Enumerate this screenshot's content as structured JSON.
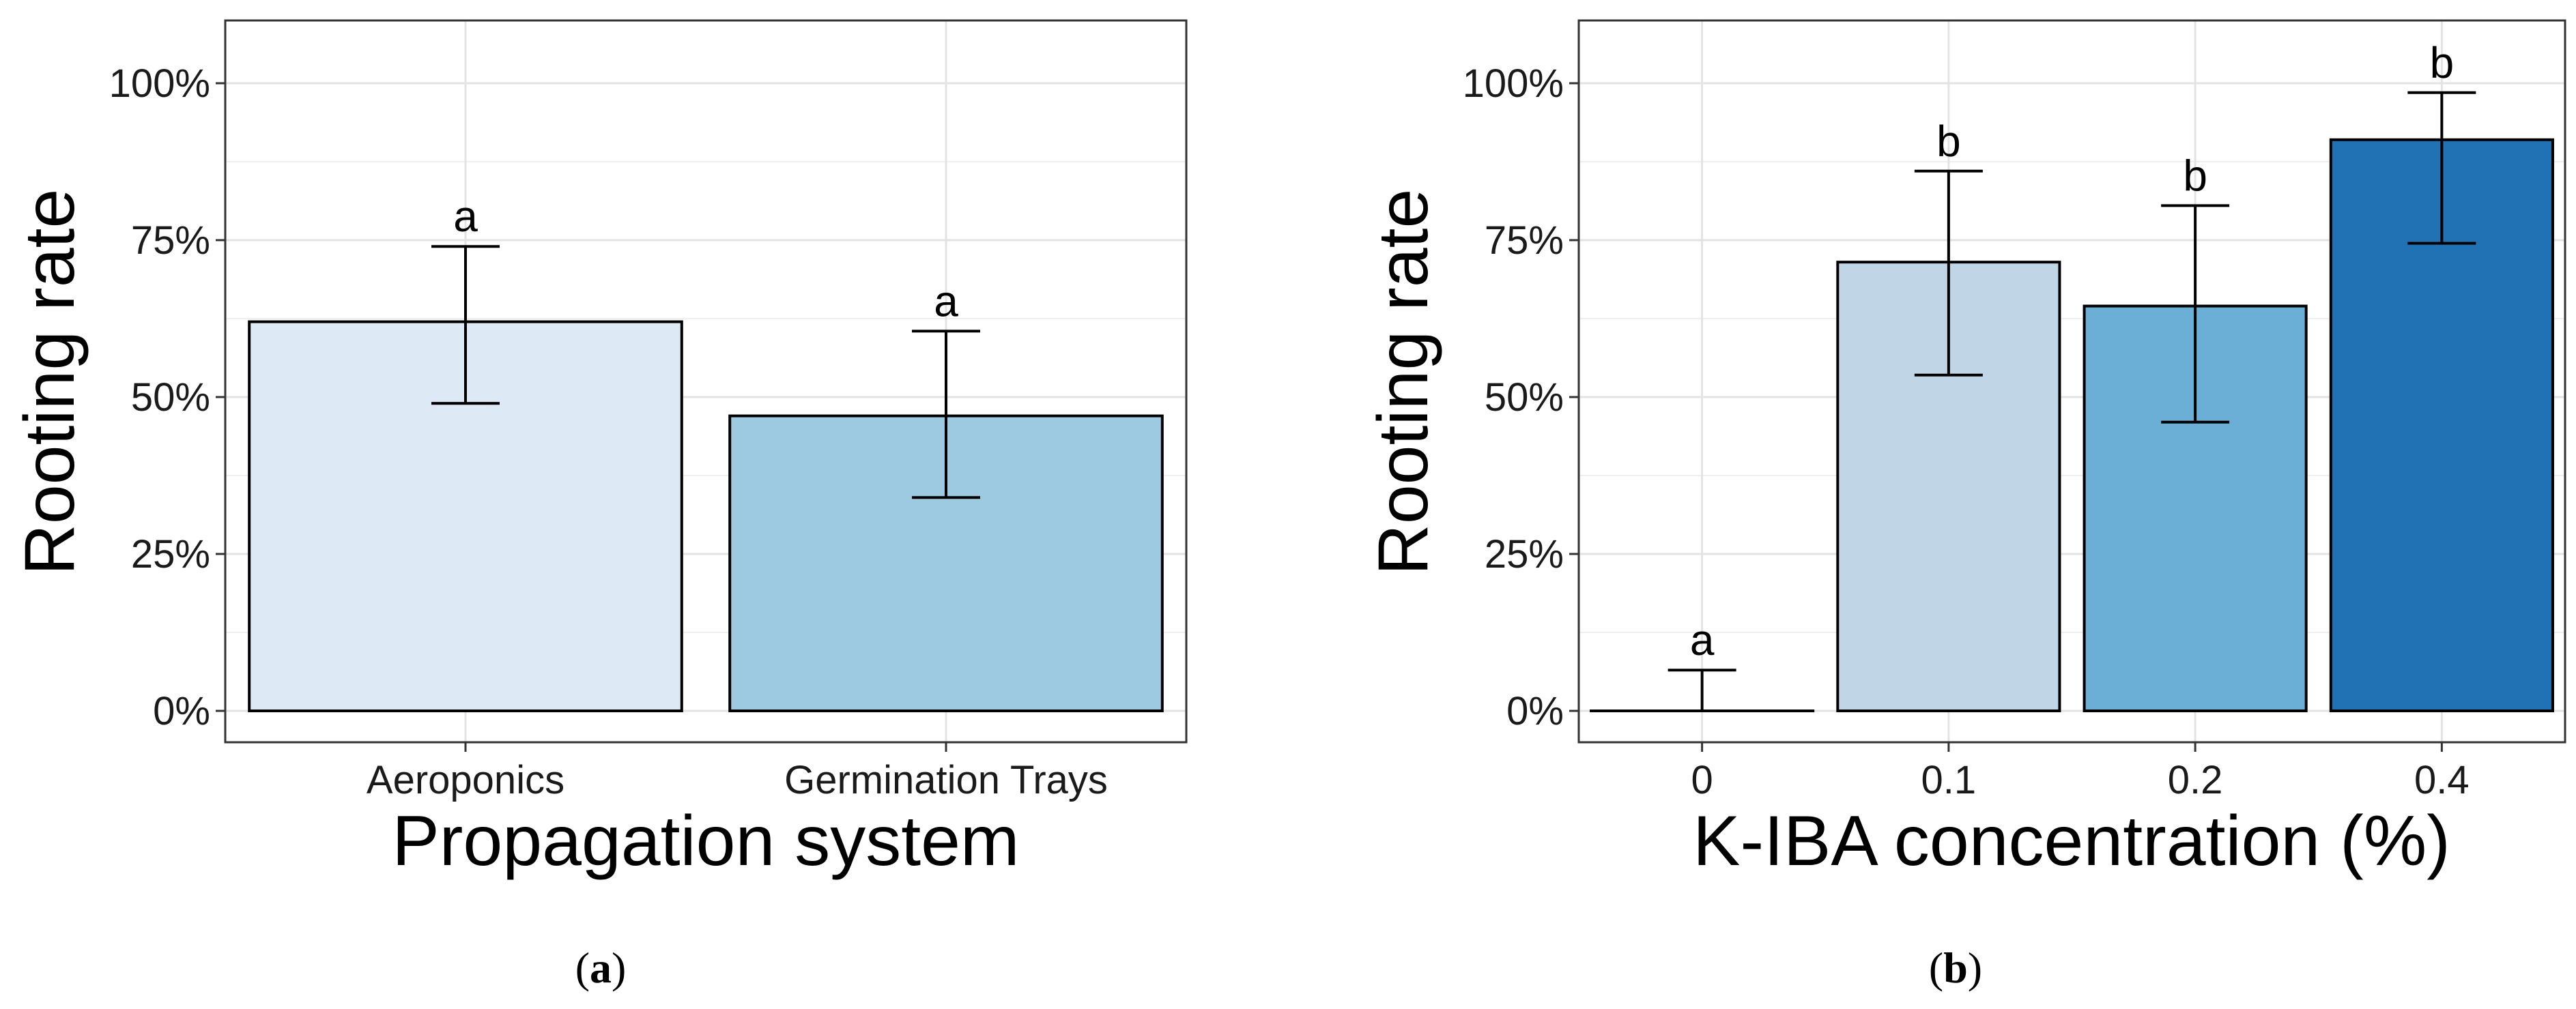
{
  "chart_data": [
    {
      "type": "bar",
      "panel": "(a)",
      "panel_letter": "a",
      "xlabel": "Propagation system",
      "ylabel": "Rooting rate",
      "categories": [
        "Aeroponics",
        "Germination Trays"
      ],
      "values": [
        0.62,
        0.47
      ],
      "error_low": [
        0.49,
        0.34
      ],
      "error_high": [
        0.74,
        0.605
      ],
      "significance": [
        "a",
        "a"
      ],
      "colors": [
        "#dde9f5",
        "#9ecae1"
      ],
      "ylim": [
        -0.05,
        1.1
      ],
      "yticks": [
        0,
        0.25,
        0.5,
        0.75,
        1.0
      ],
      "ytick_labels": [
        "0%",
        "25%",
        "50%",
        "75%",
        "100%"
      ],
      "grid": true
    },
    {
      "type": "bar",
      "panel": "(b)",
      "panel_letter": "b",
      "xlabel": "K-IBA concentration (%)",
      "ylabel": "Rooting rate",
      "categories": [
        "0",
        "0.1",
        "0.2",
        "0.4"
      ],
      "values": [
        0.0,
        0.715,
        0.645,
        0.91
      ],
      "error_low": [
        0.0,
        0.535,
        0.46,
        0.745
      ],
      "error_high": [
        0.065,
        0.86,
        0.805,
        0.985
      ],
      "significance": [
        "a",
        "b",
        "b",
        "b"
      ],
      "colors": [
        "#ffffff",
        "#c0d6e6",
        "#6baed6",
        "#2171b5"
      ],
      "ylim": [
        -0.05,
        1.1
      ],
      "yticks": [
        0,
        0.25,
        0.5,
        0.75,
        1.0
      ],
      "ytick_labels": [
        "0%",
        "25%",
        "50%",
        "75%",
        "100%"
      ],
      "grid": true
    }
  ]
}
